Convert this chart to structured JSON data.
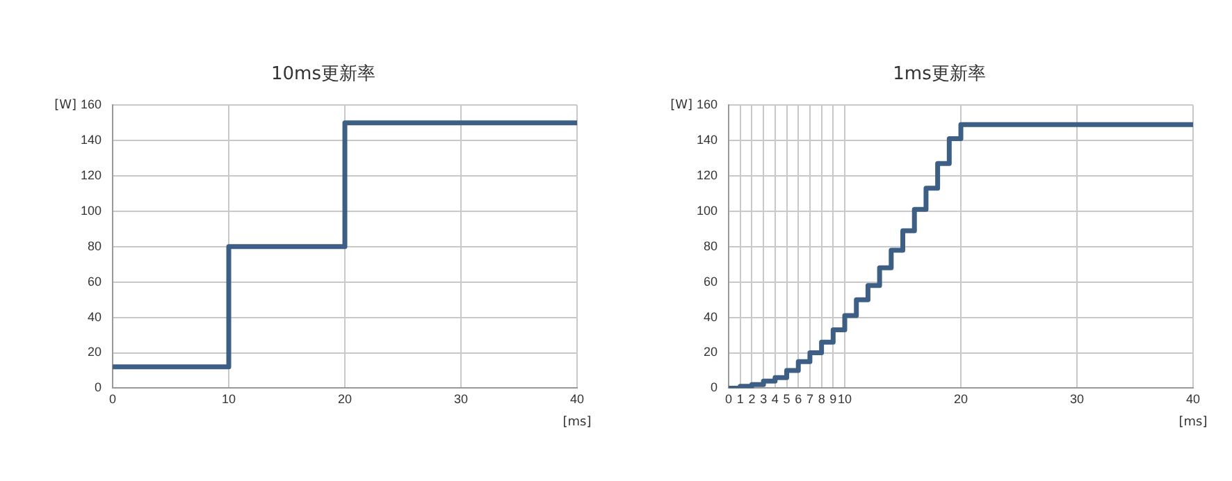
{
  "chart_data": [
    {
      "type": "step",
      "title": "10ms更新率",
      "xlabel": "[ms]",
      "ylabel": "[W]",
      "x": [
        0,
        10,
        20,
        40
      ],
      "series": [
        {
          "color": "#3d5f85",
          "values": [
            12,
            80,
            150,
            150
          ]
        }
      ],
      "xlim": [
        0,
        40
      ],
      "xticks": [
        0,
        10,
        20,
        30,
        40
      ],
      "ylim": [
        0,
        160
      ],
      "yticks": [
        0,
        20,
        40,
        60,
        80,
        100,
        120,
        140,
        160
      ],
      "grid": true,
      "legend": false,
      "marker": "none",
      "line_style": "solid"
    },
    {
      "type": "step",
      "title": "1ms更新率",
      "xlabel": "[ms]",
      "ylabel": "[W]",
      "x": [
        0,
        1,
        2,
        3,
        4,
        5,
        6,
        7,
        8,
        9,
        10,
        11,
        12,
        13,
        14,
        15,
        16,
        17,
        18,
        19,
        20,
        40
      ],
      "series": [
        {
          "color": "#3d5f85",
          "values": [
            0,
            1,
            2,
            4,
            6,
            10,
            15,
            20,
            26,
            33,
            41,
            50,
            58,
            68,
            78,
            89,
            101,
            113,
            127,
            141,
            149,
            149
          ]
        }
      ],
      "xlim": [
        0,
        40
      ],
      "xticks": [
        0,
        1,
        2,
        3,
        4,
        5,
        6,
        7,
        8,
        9,
        10,
        20,
        30,
        40
      ],
      "ylim": [
        0,
        160
      ],
      "yticks": [
        0,
        20,
        40,
        60,
        80,
        100,
        120,
        140,
        160
      ],
      "grid": true,
      "legend": false,
      "marker": "none",
      "line_style": "solid"
    }
  ]
}
